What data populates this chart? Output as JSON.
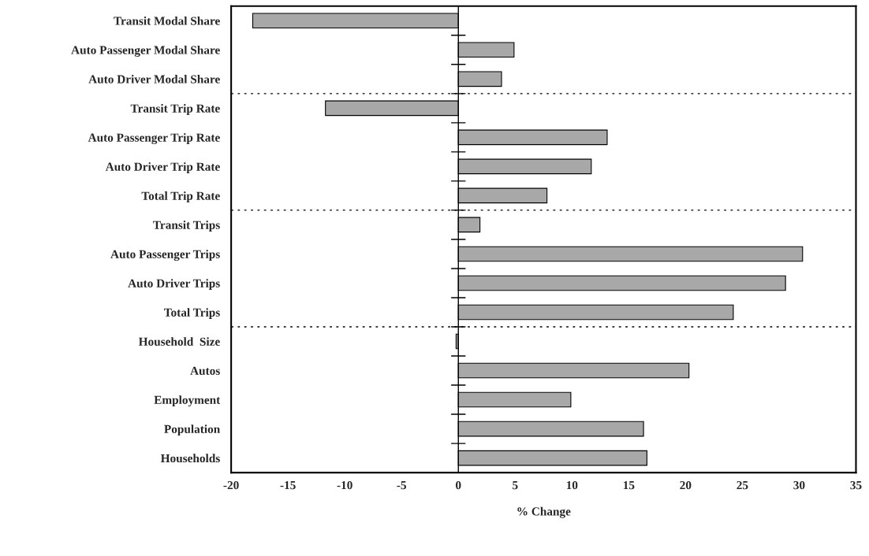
{
  "chart_data": {
    "type": "bar",
    "orientation": "horizontal",
    "xlabel": "% Change",
    "categories": [
      "Transit Modal Share",
      "Auto Passenger Modal Share",
      "Auto Driver Modal Share",
      "Transit Trip Rate",
      "Auto Passenger Trip Rate",
      "Auto Driver Trip Rate",
      "Total Trip Rate",
      "Transit Trips",
      "Auto Passenger Trips",
      "Auto Driver Trips",
      "Total Trips",
      "Household  Size",
      "Autos",
      "Employment",
      "Population",
      "Households"
    ],
    "values": [
      -18.1,
      4.9,
      3.8,
      -11.7,
      13.1,
      11.7,
      7.8,
      1.9,
      30.3,
      28.8,
      24.2,
      -0.2,
      20.3,
      9.9,
      16.3,
      16.6
    ],
    "color": "#a8a8a8",
    "xlim": [
      -20,
      35
    ],
    "xticks": [
      -20,
      -15,
      -10,
      -5,
      0,
      5,
      10,
      15,
      20,
      25,
      30,
      35
    ],
    "grid": false,
    "legend": false
  }
}
